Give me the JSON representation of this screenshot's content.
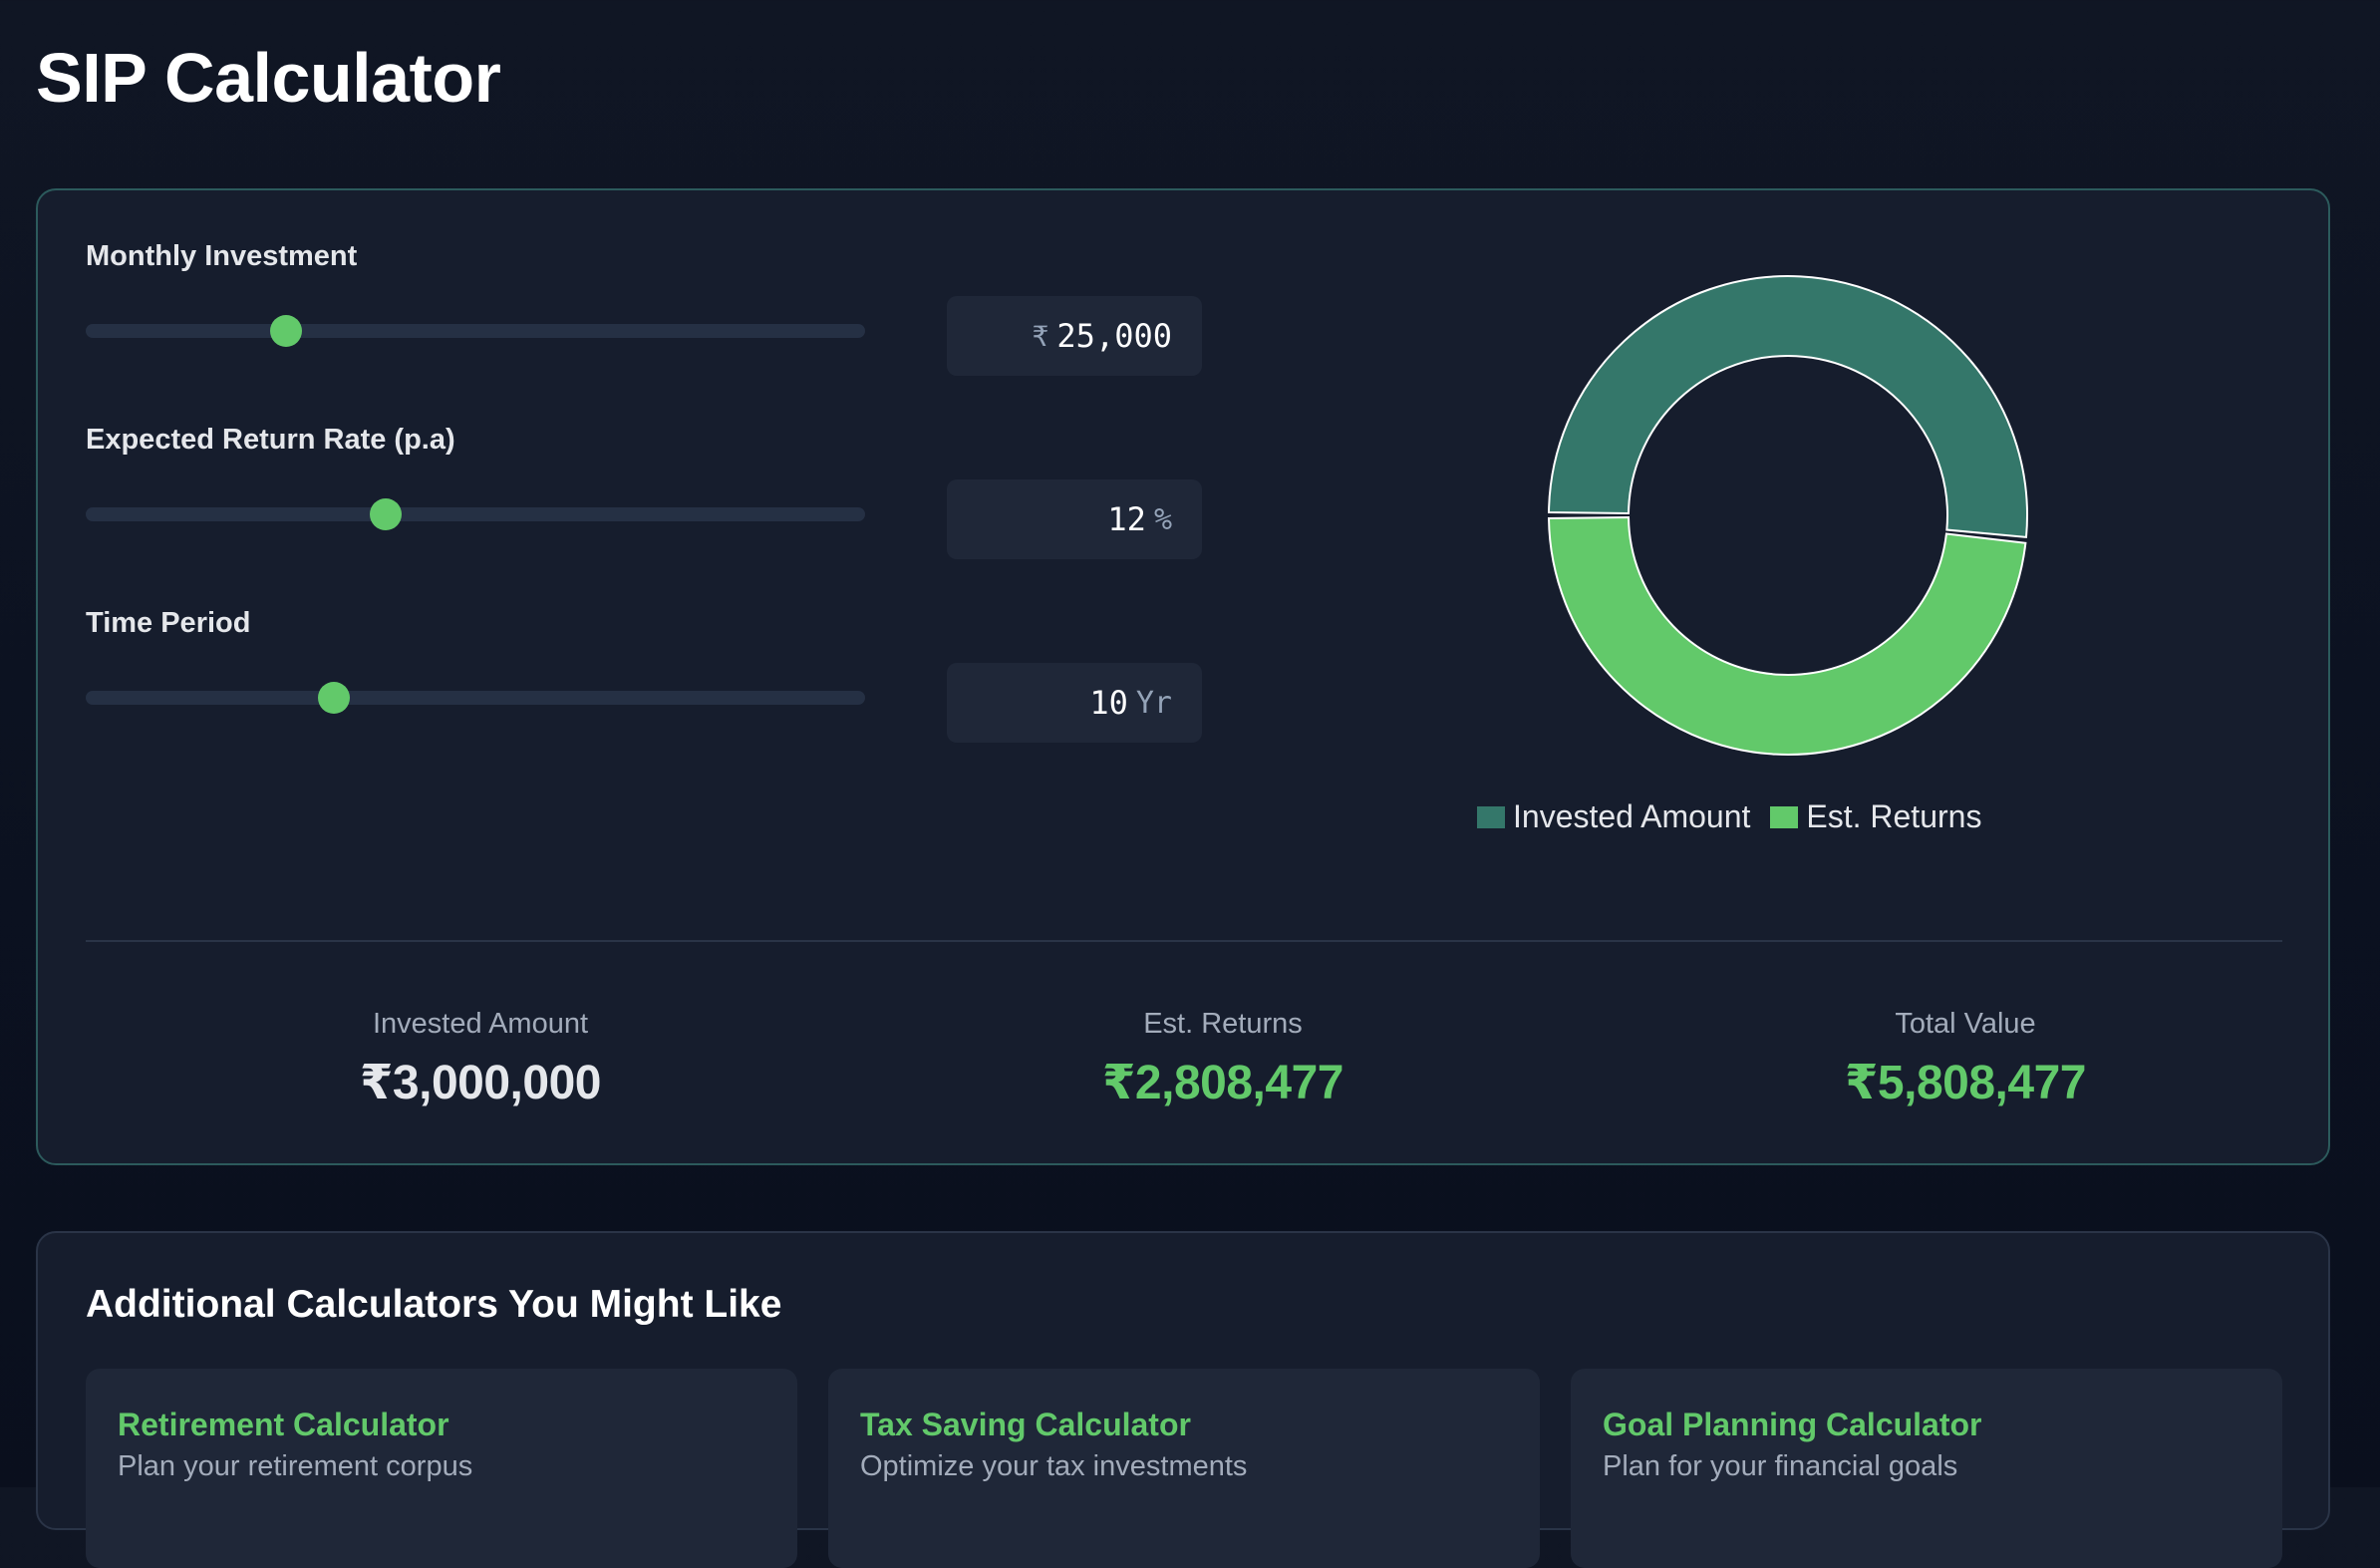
{
  "page": {
    "title": "SIP Calculator"
  },
  "inputs": {
    "monthly": {
      "label": "Monthly Investment",
      "prefix": "₹",
      "value": "25,000",
      "slider_fraction": 0.257
    },
    "rate": {
      "label": "Expected Return Rate (p.a)",
      "value": "12",
      "unit": "%",
      "slider_fraction": 0.385
    },
    "period": {
      "label": "Time Period",
      "value": "10",
      "unit": "Yr",
      "slider_fraction": 0.318
    }
  },
  "chart_data": {
    "type": "pie",
    "style": "donut",
    "series": [
      {
        "name": "Invested Amount",
        "value": 3000000,
        "color": "#34776a"
      },
      {
        "name": "Est. Returns",
        "value": 2808477,
        "color": "#62c96a"
      }
    ],
    "legend": "bottom"
  },
  "summary": {
    "invested": {
      "label": "Invested Amount",
      "value": "₹3,000,000"
    },
    "returns": {
      "label": "Est. Returns",
      "value": "₹2,808,477"
    },
    "total": {
      "label": "Total Value",
      "value": "₹5,808,477"
    }
  },
  "more": {
    "title": "Additional Calculators You Might Like",
    "items": [
      {
        "name": "Retirement Calculator",
        "desc": "Plan your retirement corpus"
      },
      {
        "name": "Tax Saving Calculator",
        "desc": "Optimize your tax investments"
      },
      {
        "name": "Goal Planning Calculator",
        "desc": "Plan for your financial goals"
      }
    ]
  },
  "colors": {
    "accent": "#62c96a",
    "invested": "#34776a",
    "card_border": "#2c5a5c"
  }
}
